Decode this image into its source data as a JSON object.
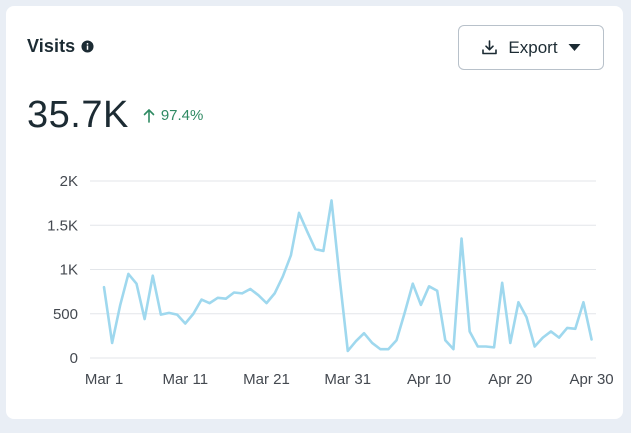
{
  "widget": {
    "title": "Visits",
    "info_icon": "info-icon",
    "export_label": "Export",
    "export_icon": "download-icon",
    "dropdown_icon": "caret-down-icon",
    "total": "35.7K",
    "delta": "97.4%",
    "delta_icon": "arrow-up-icon",
    "colors": {
      "line": "#9fd8ee",
      "delta": "#2f8a63",
      "grid": "#e3e6ea",
      "text": "#1c2b33"
    }
  },
  "chart_data": {
    "type": "line",
    "title": "",
    "xlabel": "",
    "ylabel": "",
    "ylim": [
      0,
      2000
    ],
    "y_ticks": [
      0,
      500,
      1000,
      1500,
      2000
    ],
    "y_tick_labels": [
      "0",
      "500",
      "1K",
      "1.5K",
      "2K"
    ],
    "x_tick_labels": [
      "Mar 1",
      "Mar 11",
      "Mar 21",
      "Mar 31",
      "Apr 10",
      "Apr 20",
      "Apr 30"
    ],
    "x_tick_positions": [
      0,
      10,
      20,
      30,
      40,
      50,
      60
    ],
    "x_max": 60.3,
    "series": [
      {
        "name": "Visits",
        "values": [
          800,
          170,
          600,
          950,
          840,
          440,
          930,
          490,
          510,
          490,
          390,
          500,
          660,
          620,
          680,
          670,
          740,
          730,
          780,
          710,
          620,
          730,
          920,
          1160,
          1640,
          1430,
          1230,
          1210,
          1780,
          900,
          80,
          190,
          280,
          170,
          100,
          100,
          200,
          510,
          840,
          600,
          810,
          760,
          200,
          100,
          1350,
          300,
          130,
          130,
          120,
          850,
          170,
          630,
          460,
          130,
          230,
          300,
          230,
          340,
          330,
          630,
          210
        ]
      }
    ]
  }
}
